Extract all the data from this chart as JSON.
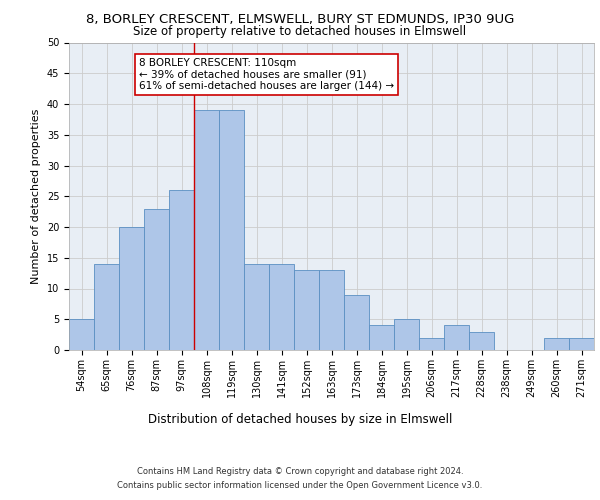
{
  "title1": "8, BORLEY CRESCENT, ELMSWELL, BURY ST EDMUNDS, IP30 9UG",
  "title2": "Size of property relative to detached houses in Elmswell",
  "xlabel": "Distribution of detached houses by size in Elmswell",
  "ylabel": "Number of detached properties",
  "footnote1": "Contains HM Land Registry data © Crown copyright and database right 2024.",
  "footnote2": "Contains public sector information licensed under the Open Government Licence v3.0.",
  "bin_labels": [
    "54sqm",
    "65sqm",
    "76sqm",
    "87sqm",
    "97sqm",
    "108sqm",
    "119sqm",
    "130sqm",
    "141sqm",
    "152sqm",
    "163sqm",
    "173sqm",
    "184sqm",
    "195sqm",
    "206sqm",
    "217sqm",
    "228sqm",
    "238sqm",
    "249sqm",
    "260sqm",
    "271sqm"
  ],
  "bar_values": [
    5,
    14,
    20,
    23,
    26,
    39,
    39,
    14,
    14,
    13,
    13,
    9,
    4,
    5,
    2,
    4,
    3,
    0,
    0,
    2,
    2
  ],
  "bar_color": "#aec6e8",
  "bar_edge_color": "#5a8fc2",
  "vline_x_index": 5,
  "vline_color": "#cc0000",
  "annotation_text": "8 BORLEY CRESCENT: 110sqm\n← 39% of detached houses are smaller (91)\n61% of semi-detached houses are larger (144) →",
  "annotation_box_color": "#ffffff",
  "annotation_box_edgecolor": "#cc0000",
  "ylim": [
    0,
    50
  ],
  "yticks": [
    0,
    5,
    10,
    15,
    20,
    25,
    30,
    35,
    40,
    45,
    50
  ],
  "grid_color": "#cccccc",
  "bg_color": "#e8eef5",
  "title1_fontsize": 9.5,
  "title2_fontsize": 8.5,
  "xlabel_fontsize": 8.5,
  "ylabel_fontsize": 8,
  "tick_fontsize": 7,
  "annotation_fontsize": 7.5,
  "footnote_fontsize": 6
}
